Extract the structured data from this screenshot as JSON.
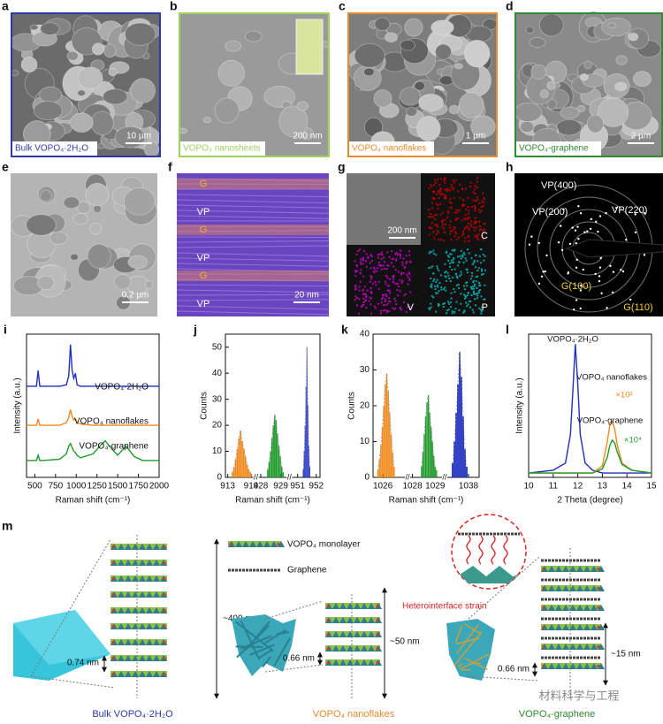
{
  "panels": [
    {
      "letter": "a",
      "caption": "Bulk VOPO₄·2H₂O",
      "scale_bar": "10 µm",
      "border_color": "#2b3aa8"
    },
    {
      "letter": "b",
      "caption": "VOPO₄ nanosheets",
      "scale_bar": "200 nm",
      "border_color": "#9fd35a"
    },
    {
      "letter": "c",
      "caption": "VOPO₄ nanoflakes",
      "scale_bar": "1 µm",
      "border_color": "#e88a2b"
    },
    {
      "letter": "d",
      "caption": "VOPO₄-graphene",
      "scale_bar": "2 µm",
      "border_color": "#2e8b2e"
    },
    {
      "letter": "e",
      "scale_bar": "0.2 µm"
    },
    {
      "letter": "f",
      "scale_bar": "20 nm",
      "labels": [
        "G",
        "VP",
        "G",
        "VP",
        "G",
        "VP"
      ]
    },
    {
      "letter": "g",
      "scale_bar": "200 nm",
      "labels": [
        "C",
        "V",
        "P"
      ]
    },
    {
      "letter": "h",
      "labels": [
        "VP(400)",
        "VP(200)",
        "VP(220)",
        "G(100)",
        "G(110)"
      ]
    }
  ],
  "chart_data": [
    {
      "type": "line",
      "panel": "i",
      "xlabel": "Raman shift (cm⁻¹)",
      "ylabel": "Intensity (a.u.)",
      "xlim": [
        400,
        2000
      ],
      "ylim": [
        0,
        11
      ],
      "xticks": [
        500,
        750,
        1000,
        1250,
        1500,
        1750,
        2000
      ],
      "x": [
        400,
        500,
        520,
        540,
        560,
        600,
        800,
        880,
        910,
        930,
        950,
        970,
        990,
        1010,
        1050,
        1200,
        1300,
        1350,
        1400,
        1500,
        1600,
        1700,
        1800,
        2000
      ],
      "series": [
        {
          "name": "VOPO₄·2H₂O",
          "color": "#1f2fc0",
          "values": [
            7,
            7,
            7,
            8.2,
            7,
            7,
            7,
            7.1,
            7.8,
            10.2,
            8.2,
            7.6,
            8,
            7.1,
            7,
            7,
            7,
            7,
            7,
            7,
            7,
            7,
            7,
            7
          ]
        },
        {
          "name": "VOPO₄ nanoflakes",
          "color": "#f08a1c",
          "values": [
            4,
            4,
            4,
            4.5,
            4,
            4,
            4,
            4.2,
            4.6,
            5.2,
            4.7,
            4.4,
            4.5,
            4.2,
            4.1,
            4,
            4,
            4,
            4,
            4,
            4,
            4,
            4,
            4
          ]
        },
        {
          "name": "VOPO₄-graphene",
          "color": "#1f9a2a",
          "values": [
            1.3,
            1.3,
            1.3,
            1.7,
            1.3,
            1.3,
            1.4,
            1.8,
            2.4,
            2.6,
            2.3,
            2,
            1.9,
            1.7,
            1.5,
            1.8,
            2.5,
            2.8,
            2.4,
            1.7,
            2.4,
            1.6,
            1.3,
            1.3
          ]
        }
      ]
    },
    {
      "type": "histogram",
      "panel": "j",
      "xlabel": "Raman shift (cm⁻¹)",
      "ylabel": "Counts",
      "xlim": [
        [
          912.9,
          914.1
        ],
        [
          927.9,
          929.3
        ],
        [
          950.7,
          952.2
        ]
      ],
      "ylim": [
        0,
        55
      ],
      "xticks": [
        913,
        914,
        928,
        929,
        951,
        952
      ],
      "yticks": [
        0,
        10,
        20,
        30,
        40,
        50
      ],
      "series": [
        {
          "color": "#f08a1c",
          "x": [
            913.2,
            913.27,
            913.34,
            913.41,
            913.48,
            913.55,
            913.62,
            913.69,
            913.76,
            913.83,
            913.9,
            913.97
          ],
          "values": [
            2,
            4,
            7,
            11,
            15,
            18,
            14,
            11,
            8,
            5,
            3,
            2
          ]
        },
        {
          "color": "#1f9a2a",
          "x": [
            928.35,
            928.42,
            928.49,
            928.56,
            928.63,
            928.7,
            928.77,
            928.84,
            928.91,
            928.98,
            929.05,
            929.12
          ],
          "values": [
            3,
            6,
            10,
            15,
            20,
            24,
            22,
            17,
            12,
            8,
            4,
            2
          ]
        },
        {
          "color": "#1f2fc0",
          "x": [
            951.3,
            951.35,
            951.4,
            951.45,
            951.5,
            951.55,
            951.6,
            951.65
          ],
          "values": [
            3,
            10,
            20,
            35,
            50,
            28,
            12,
            4
          ]
        }
      ]
    },
    {
      "type": "histogram",
      "panel": "k",
      "xlabel": "Raman shift (cm⁻¹)",
      "ylabel": "Counts",
      "xlim": [
        [
          1025.6,
          1026.9
        ],
        [
          1027.9,
          1029.3
        ],
        [
          1037.4,
          1038.3
        ]
      ],
      "ylim": [
        0,
        40
      ],
      "xticks": [
        1026,
        1028,
        1029,
        1038
      ],
      "yticks": [
        0,
        10,
        20,
        30,
        40
      ],
      "series": [
        {
          "color": "#f08a1c",
          "x": [
            1025.8,
            1025.86,
            1025.92,
            1025.98,
            1026.04,
            1026.1,
            1026.16,
            1026.22,
            1026.28,
            1026.34,
            1026.4,
            1026.46
          ],
          "values": [
            2,
            5,
            9,
            14,
            20,
            26,
            29,
            24,
            18,
            12,
            7,
            3
          ]
        },
        {
          "color": "#1f9a2a",
          "x": [
            1028.4,
            1028.46,
            1028.52,
            1028.58,
            1028.64,
            1028.7,
            1028.76,
            1028.82,
            1028.88,
            1028.94,
            1029.0,
            1029.06
          ],
          "values": [
            3,
            7,
            12,
            17,
            21,
            23,
            18,
            14,
            10,
            6,
            3,
            2
          ]
        },
        {
          "color": "#1f2fc0",
          "x": [
            1037.55,
            1037.6,
            1037.65,
            1037.7,
            1037.75,
            1037.8,
            1037.85,
            1037.9,
            1037.95
          ],
          "values": [
            4,
            10,
            18,
            26,
            35,
            28,
            17,
            8,
            3
          ]
        }
      ]
    },
    {
      "type": "line",
      "panel": "l",
      "xlabel": "2 Theta (degree)",
      "ylabel": "Intensity (a.u.)",
      "xlim": [
        10,
        15
      ],
      "ylim": [
        0,
        10
      ],
      "xticks": [
        10,
        11,
        12,
        13,
        14,
        15
      ],
      "x": [
        10,
        11,
        11.5,
        11.7,
        11.8,
        11.9,
        12,
        12.1,
        12.3,
        12.6,
        13,
        13.2,
        13.3,
        13.4,
        13.5,
        13.6,
        13.8,
        14.2,
        15
      ],
      "annotations": [
        {
          "text": "VOPO₄·2H₂O",
          "color": "#111"
        },
        {
          "text": "VOPO₄ nanoflakes",
          "color": "#111"
        },
        {
          "text": "×10²",
          "color": "#f08a1c"
        },
        {
          "text": "VOPO₄-graphene",
          "color": "#111"
        },
        {
          "text": "×10⁴",
          "color": "#1f9a2a"
        }
      ],
      "series": [
        {
          "color": "#1f2fc0",
          "values": [
            0.3,
            0.5,
            1,
            3,
            6,
            9.3,
            6.5,
            3,
            1,
            0.5,
            0.3,
            0.3,
            0.3,
            0.3,
            0.3,
            0.3,
            0.3,
            0.3,
            0.3
          ]
        },
        {
          "color": "#f08a1c",
          "values": [
            0.3,
            0.3,
            0.3,
            0.3,
            0.3,
            0.3,
            0.3,
            0.3,
            0.3,
            0.3,
            0.8,
            2.5,
            3.6,
            3.9,
            3.4,
            2.3,
            1,
            0.5,
            0.3
          ]
        },
        {
          "color": "#1f9a2a",
          "values": [
            0.3,
            0.3,
            0.3,
            0.3,
            0.3,
            0.3,
            0.3,
            0.3,
            0.3,
            0.3,
            0.6,
            1.4,
            2.2,
            2.6,
            2.4,
            1.8,
            0.9,
            0.5,
            0.3
          ]
        }
      ]
    }
  ],
  "schematic": {
    "letter": "m",
    "legend": [
      "VOPO₄ monolayer",
      "Graphene"
    ],
    "strain_label": "Heterointerface strain",
    "columns": [
      {
        "caption": "Bulk VOPO₄·2H₂O",
        "thickness": "~400 nm",
        "spacing": "0.74 nm"
      },
      {
        "caption": "VOPO₄ nanoflakes",
        "thickness": "~50 nm",
        "spacing": "0.66 nm"
      },
      {
        "caption": "VOPO₄-graphene",
        "thickness": "~15 nm",
        "spacing": "0.66 nm"
      }
    ],
    "watermark": "材料科学与工程"
  }
}
